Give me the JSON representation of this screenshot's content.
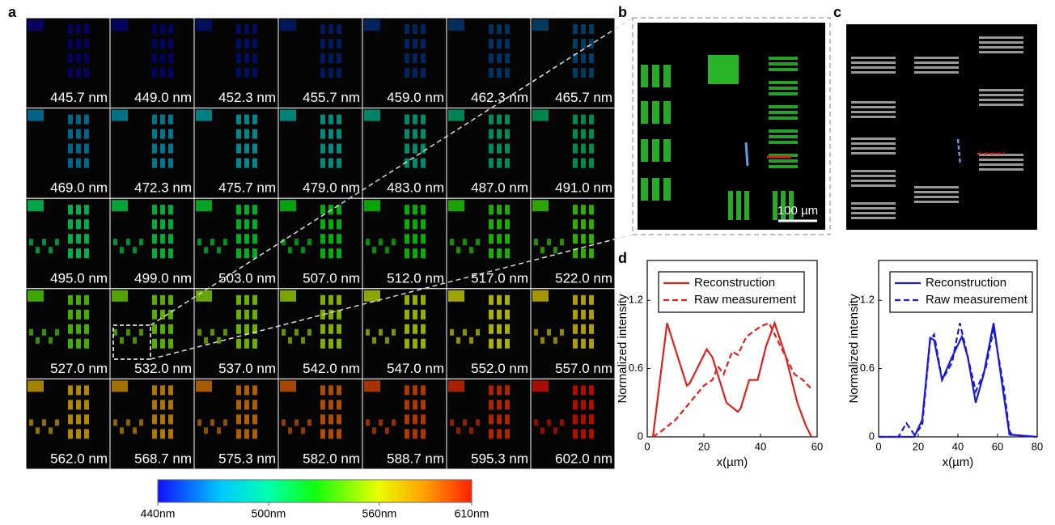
{
  "panel_labels": [
    "a",
    "b",
    "c",
    "d"
  ],
  "wavelength_labels": [
    "445.7 nm",
    "449.0 nm",
    "452.3 nm",
    "455.7 nm",
    "459.0 nm",
    "462.3 nm",
    "465.7 nm",
    "469.0 nm",
    "472.3 nm",
    "475.7 nm",
    "479.0 nm",
    "483.0 nm",
    "487.0 nm",
    "491.0 nm",
    "495.0 nm",
    "499.0 nm",
    "503.0 nm",
    "507.0 nm",
    "512.0 nm",
    "517.0 nm",
    "522.0 nm",
    "527.0 nm",
    "532.0 nm",
    "537.0 nm",
    "542.0 nm",
    "547.0 nm",
    "552.0 nm",
    "557.0 nm",
    "562.0 nm",
    "568.7 nm",
    "575.3 nm",
    "582.0 nm",
    "588.7 nm",
    "595.3 nm",
    "602.0 nm"
  ],
  "colorbar": {
    "lim": [
      440,
      610
    ],
    "ticks": [
      {
        "value": 440,
        "label": "440nm"
      },
      {
        "value": 500,
        "label": "500nm"
      },
      {
        "value": 560,
        "label": "560nm"
      },
      {
        "value": 610,
        "label": "610nm"
      }
    ]
  },
  "scale_bar": "100 µm",
  "chart_data": [
    {
      "type": "line",
      "xlabel": "x(µm)",
      "ylabel": "Normalized intensity",
      "xlim": [
        0,
        60
      ],
      "ylim": [
        0,
        1.55
      ],
      "xticks": [
        0,
        20,
        40,
        60
      ],
      "yticks": [
        0,
        0.6,
        1.2
      ],
      "series": [
        {
          "name": "Reconstruction",
          "color": "#e0201b",
          "dash": false,
          "x": [
            2,
            7,
            14,
            15,
            21,
            23,
            28,
            32,
            33,
            36,
            39,
            42,
            45,
            49,
            53,
            56,
            58
          ],
          "values": [
            0,
            1.0,
            0.45,
            0.47,
            0.77,
            0.7,
            0.3,
            0.22,
            0.25,
            0.5,
            0.5,
            0.8,
            1.0,
            0.7,
            0.3,
            0.1,
            0
          ]
        },
        {
          "name": "Raw measurement",
          "color": "#e0201b",
          "dash": true,
          "x": [
            2,
            5,
            10,
            15,
            20,
            23,
            25,
            27,
            30,
            32,
            35,
            40,
            43,
            45,
            48,
            52,
            55,
            58
          ],
          "values": [
            0,
            0.05,
            0.15,
            0.3,
            0.45,
            0.5,
            0.62,
            0.55,
            0.75,
            0.72,
            0.88,
            0.97,
            1.0,
            0.9,
            0.75,
            0.55,
            0.5,
            0.42
          ]
        }
      ]
    },
    {
      "type": "line",
      "xlabel": "x(µm)",
      "ylabel": "Normalized intensity",
      "xlim": [
        0,
        80
      ],
      "ylim": [
        0,
        1.55
      ],
      "xticks": [
        0,
        20,
        40,
        60,
        80
      ],
      "yticks": [
        0,
        0.6,
        1.2
      ],
      "series": [
        {
          "name": "Reconstruction",
          "color": "#1a1ad6",
          "dash": false,
          "x": [
            0,
            18,
            22,
            26,
            28,
            32,
            37,
            42,
            45,
            49,
            53,
            58,
            62,
            66,
            80
          ],
          "values": [
            0,
            0,
            0.15,
            0.87,
            0.85,
            0.5,
            0.7,
            0.88,
            0.7,
            0.3,
            0.55,
            1.0,
            0.5,
            0.02,
            0
          ]
        },
        {
          "name": "Raw measurement",
          "color": "#1a1ad6",
          "dash": true,
          "x": [
            0,
            10,
            14,
            18,
            22,
            26,
            28,
            32,
            37,
            41,
            45,
            49,
            54,
            58,
            63,
            66,
            68
          ],
          "values": [
            0,
            0,
            0.12,
            0.02,
            0.1,
            0.85,
            0.9,
            0.5,
            0.65,
            1.0,
            0.7,
            0.4,
            0.6,
            0.95,
            0.45,
            0.05,
            0
          ]
        }
      ]
    }
  ]
}
